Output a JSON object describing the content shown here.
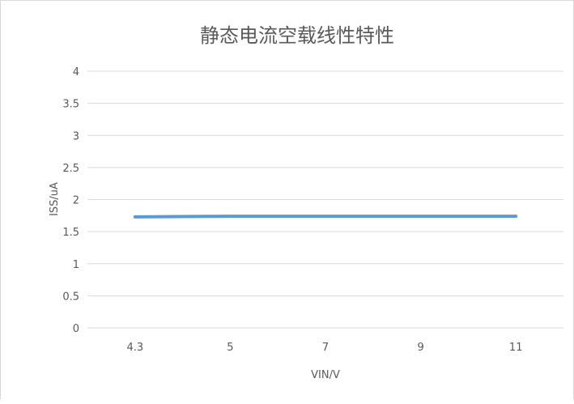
{
  "chart_data": {
    "type": "line",
    "title": "静态电流空载线性特性",
    "xlabel": "VIN/V",
    "ylabel": "ISS/uA",
    "categories": [
      "4.3",
      "5",
      "7",
      "9",
      "11"
    ],
    "series": [
      {
        "values": [
          1.73,
          1.74,
          1.74,
          1.74,
          1.74
        ],
        "color": "#5b9bd5"
      }
    ],
    "ylim": [
      0,
      4
    ],
    "yticks": [
      "0",
      "0.5",
      "1",
      "1.5",
      "2",
      "2.5",
      "3",
      "3.5",
      "4"
    ],
    "grid": true,
    "legend": "none"
  }
}
